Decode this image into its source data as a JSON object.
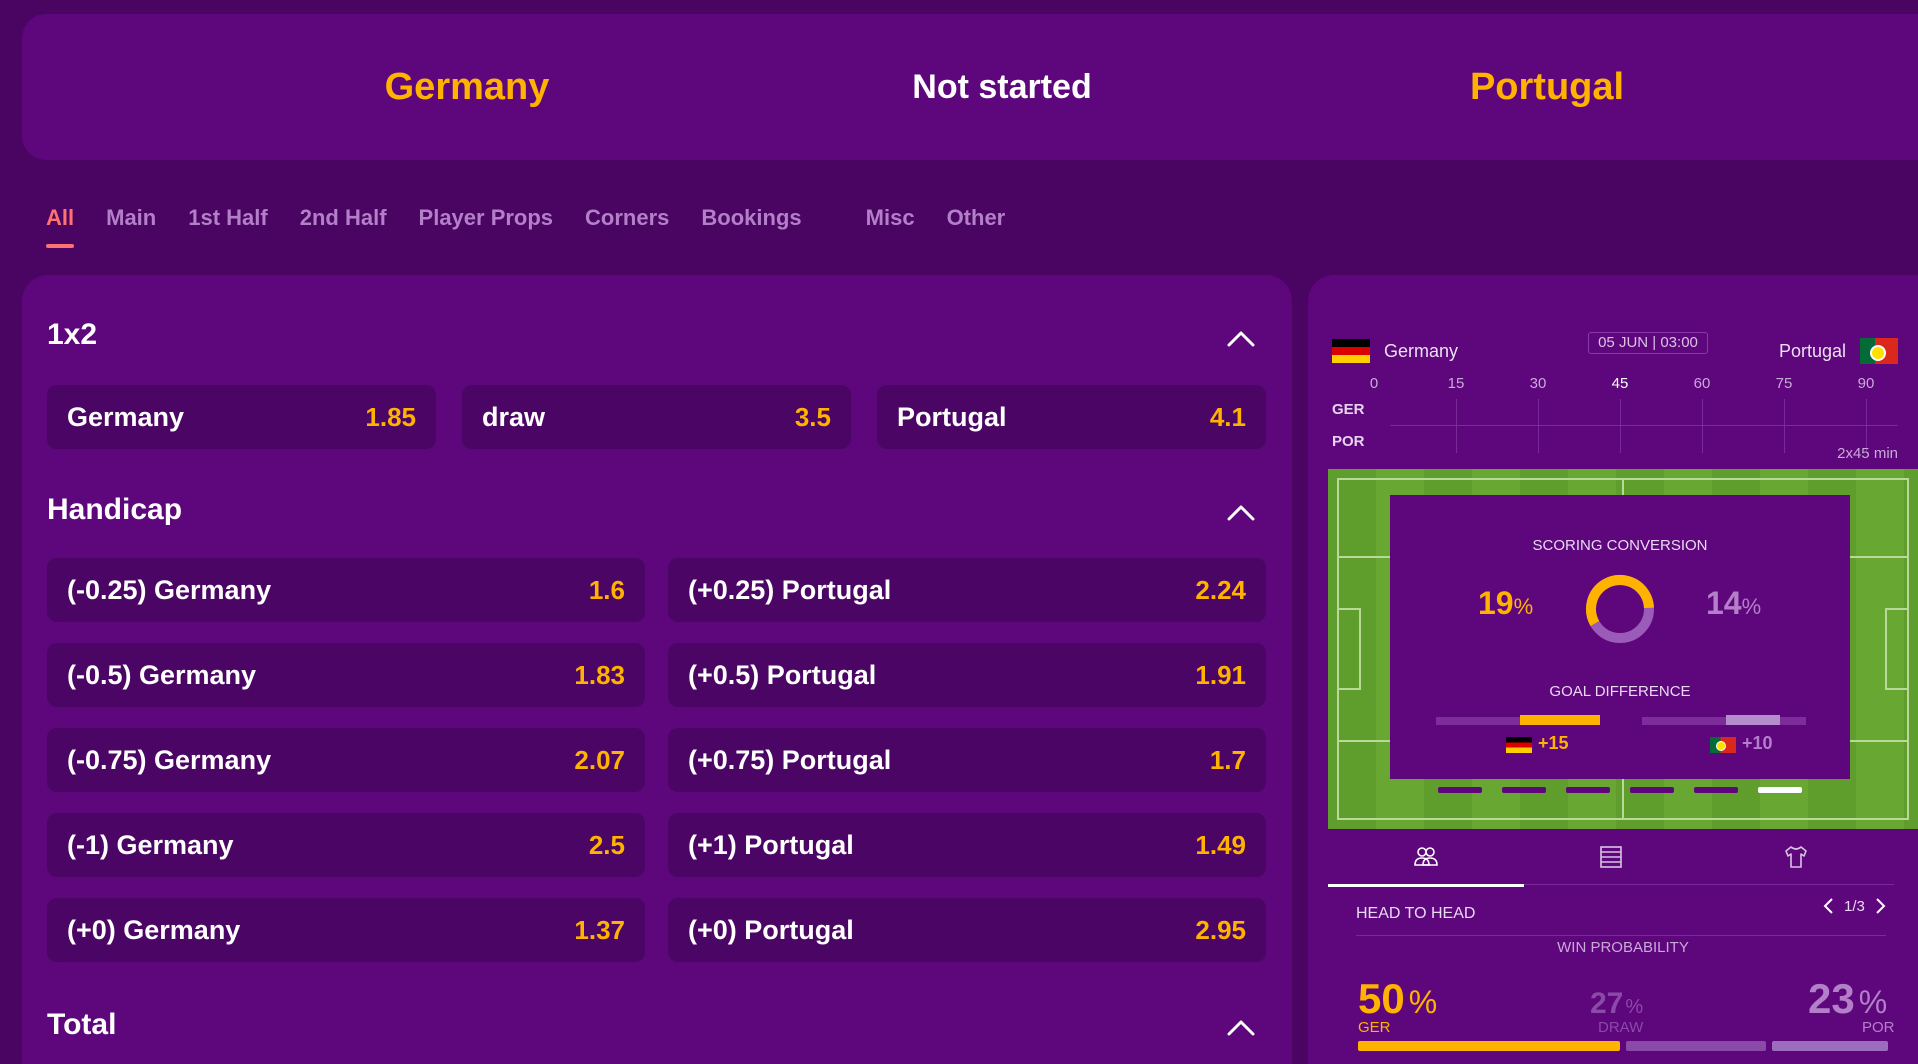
{
  "match": {
    "home": "Germany",
    "status": "Not started",
    "away": "Portugal"
  },
  "tabs": [
    "All",
    "Main",
    "1st Half",
    "2nd Half",
    "Player Props",
    "Corners",
    "Bookings",
    "Misc",
    "Other"
  ],
  "markets": {
    "onextwo": {
      "title": "1x2",
      "odds": [
        {
          "label": "Germany",
          "value": "1.85"
        },
        {
          "label": "draw",
          "value": "3.5"
        },
        {
          "label": "Portugal",
          "value": "4.1"
        }
      ]
    },
    "handicap": {
      "title": "Handicap",
      "rows": [
        {
          "home": {
            "label": "(-0.25) Germany",
            "value": "1.6"
          },
          "away": {
            "label": "(+0.25) Portugal",
            "value": "2.24"
          }
        },
        {
          "home": {
            "label": "(-0.5) Germany",
            "value": "1.83"
          },
          "away": {
            "label": "(+0.5) Portugal",
            "value": "1.91"
          }
        },
        {
          "home": {
            "label": "(-0.75) Germany",
            "value": "2.07"
          },
          "away": {
            "label": "(+0.75) Portugal",
            "value": "1.7"
          }
        },
        {
          "home": {
            "label": "(-1) Germany",
            "value": "2.5"
          },
          "away": {
            "label": "(+1) Portugal",
            "value": "1.49"
          }
        },
        {
          "home": {
            "label": "(+0) Germany",
            "value": "1.37"
          },
          "away": {
            "label": "(+0) Portugal",
            "value": "2.95"
          }
        }
      ]
    },
    "total": {
      "title": "Total"
    }
  },
  "stats": {
    "home_team": "Germany",
    "away_team": "Portugal",
    "date": "05 JUN | 03:00",
    "timeline": {
      "ticks": [
        "0",
        "15",
        "30",
        "45",
        "60",
        "75",
        "90"
      ],
      "home_abbr": "GER",
      "away_abbr": "POR",
      "duration": "2x45 min"
    },
    "scoring_conversion": {
      "title": "SCORING CONVERSION",
      "home": "19",
      "away": "14",
      "unit": "%"
    },
    "goal_difference": {
      "title": "GOAL DIFFERENCE",
      "home": "+15",
      "away": "+10"
    },
    "slides": {
      "count": 6,
      "active": 6
    },
    "tab_icons": [
      "head-to-head-icon",
      "standings-icon",
      "lineup-shirt-icon"
    ],
    "head_to_head": {
      "title": "HEAD TO HEAD",
      "page": "1/3",
      "win_probability_title": "WIN PROBABILITY",
      "home": {
        "value": "50",
        "label": "GER"
      },
      "draw": {
        "value": "27",
        "label": "DRAW"
      },
      "away": {
        "value": "23",
        "label": "POR"
      },
      "unit": "%"
    },
    "colors": {
      "accent": "#ffb300",
      "panel": "#5e067c",
      "background": "#4a0462",
      "active_tab": "#ff7272"
    }
  }
}
